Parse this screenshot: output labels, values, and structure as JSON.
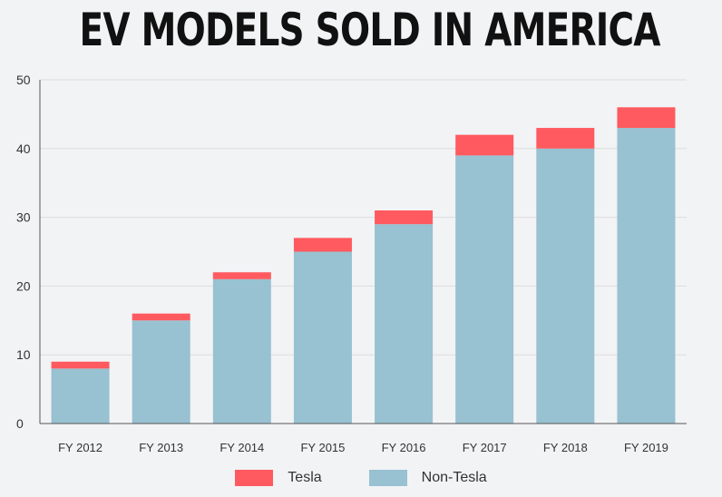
{
  "title": "EV MODELS SOLD IN AMERICA",
  "colors": {
    "tesla": "#ff5a5f",
    "non_tesla": "#98c1d1",
    "grid": "#dddddd",
    "axis": "#555555",
    "text": "#333333"
  },
  "legend": {
    "tesla": "Tesla",
    "non_tesla": "Non-Tesla"
  },
  "chart_data": {
    "type": "bar",
    "stacked": true,
    "title": "EV MODELS SOLD IN AMERICA",
    "xlabel": "",
    "ylabel": "",
    "categories": [
      "FY 2012",
      "FY 2013",
      "FY 2014",
      "FY 2015",
      "FY 2016",
      "FY 2017",
      "FY 2018",
      "FY 2019"
    ],
    "series": [
      {
        "name": "Non-Tesla",
        "values": [
          8,
          15,
          21,
          25,
          29,
          39,
          40,
          43
        ]
      },
      {
        "name": "Tesla",
        "values": [
          1,
          1,
          1,
          2,
          2,
          3,
          3,
          3
        ]
      }
    ],
    "ylim": [
      0,
      50
    ],
    "yticks": [
      0,
      10,
      20,
      30,
      40,
      50
    ],
    "grid": true,
    "legend_position": "bottom"
  }
}
